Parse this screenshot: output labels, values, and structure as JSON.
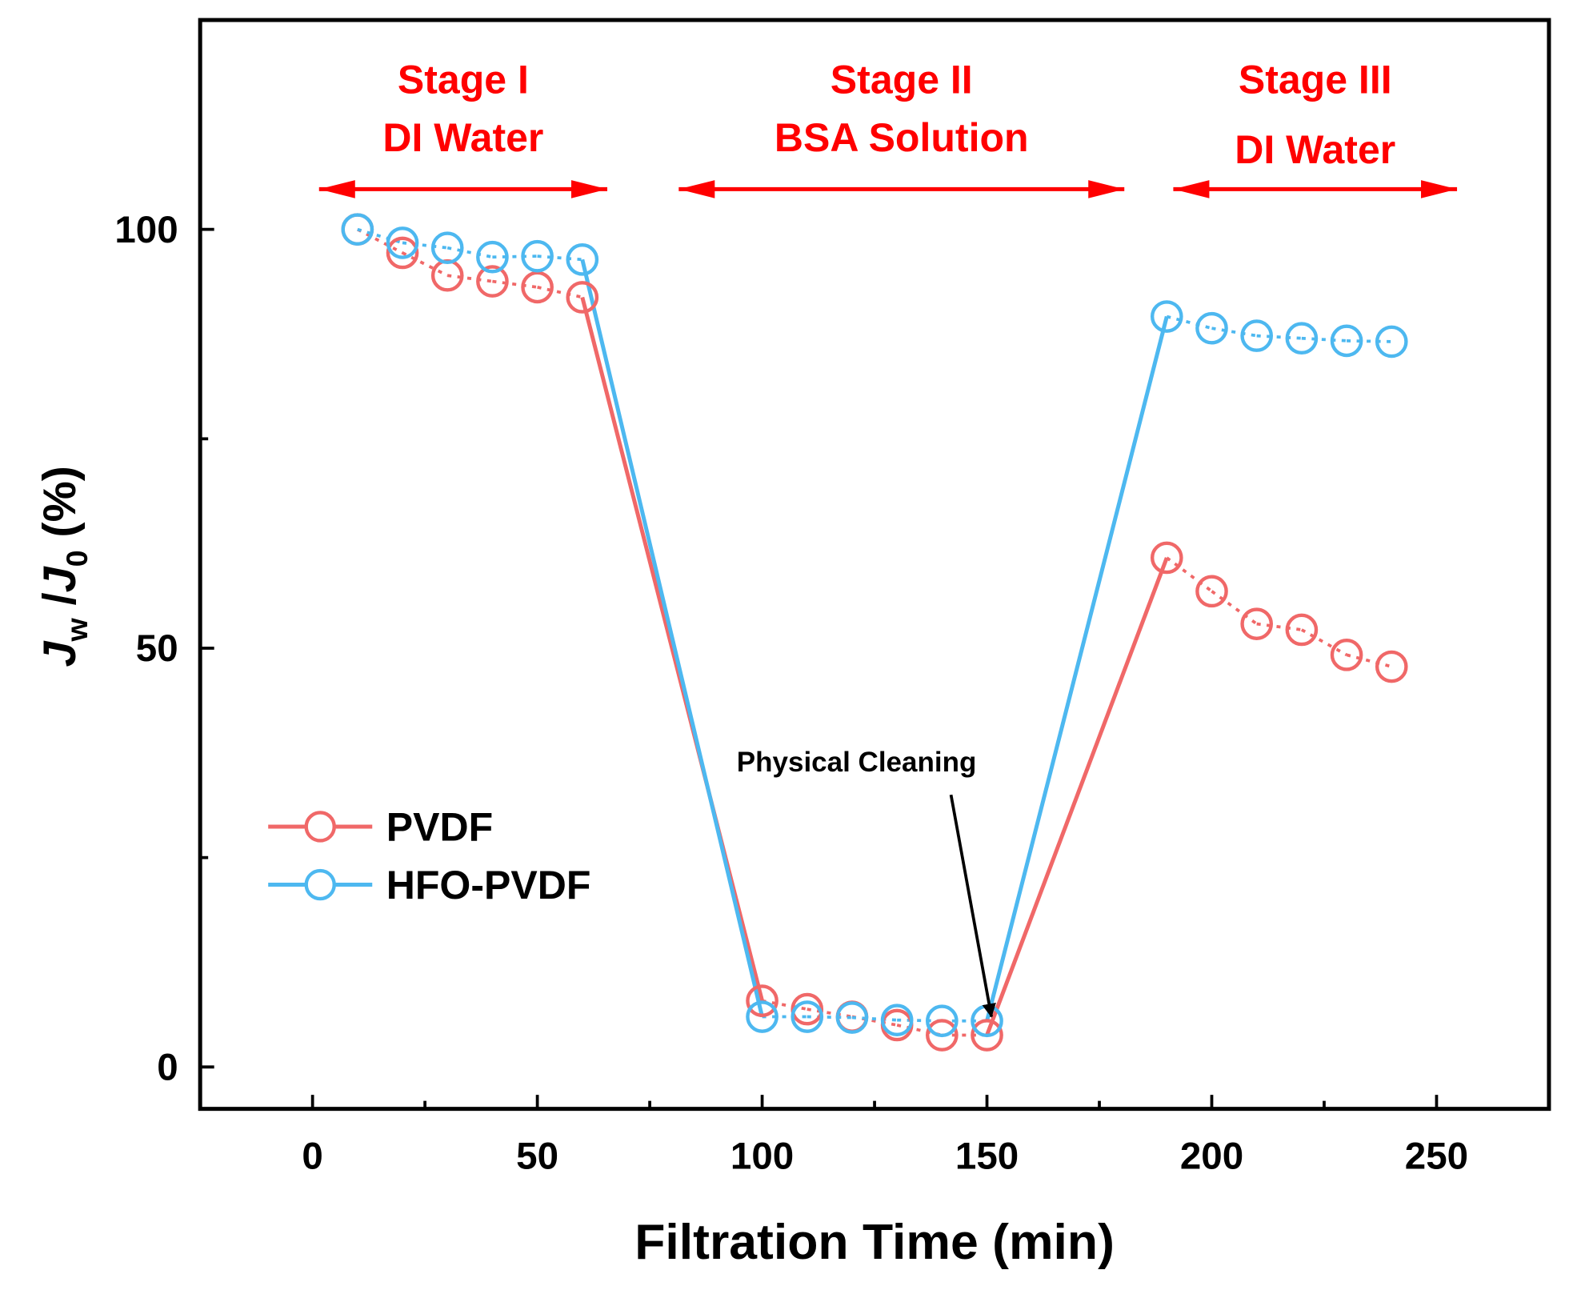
{
  "chart_data": {
    "type": "line",
    "title": "",
    "xlabel": "Filtration Time (min)",
    "ylabel_parts": {
      "J1": "J",
      "sub1": "w",
      "slash": " /",
      "J2": "J",
      "sub2": "0",
      "unit": " (%)"
    },
    "xlim": [
      -25,
      275
    ],
    "ylim": [
      -5,
      125
    ],
    "xticks": [
      0,
      50,
      100,
      150,
      200,
      250
    ],
    "xtick_labels": [
      "0",
      "50",
      "100",
      "150",
      "200",
      "250"
    ],
    "xminor": [
      25,
      75,
      125,
      175,
      225
    ],
    "yticks": [
      0,
      50,
      100
    ],
    "ytick_labels": [
      "0",
      "50",
      "100"
    ],
    "yminor": [
      25,
      75
    ],
    "grid": false,
    "legend_placement": "lower-left",
    "series": [
      {
        "name": "PVDF",
        "color": "#f06868",
        "x": [
          10,
          20,
          30,
          40,
          50,
          60,
          100,
          110,
          120,
          130,
          140,
          150,
          190,
          200,
          210,
          220,
          230,
          240
        ],
        "y": [
          100,
          97.2,
          94.5,
          93.8,
          93.1,
          91.9,
          7.9,
          6.9,
          6.0,
          5.0,
          3.8,
          3.8,
          60.8,
          56.8,
          52.9,
          52.2,
          49.2,
          47.8
        ]
      },
      {
        "name": "HFO-PVDF",
        "color": "#4db8f0",
        "x": [
          10,
          20,
          30,
          40,
          50,
          60,
          100,
          110,
          120,
          130,
          140,
          150,
          190,
          200,
          210,
          220,
          230,
          240
        ],
        "y": [
          100,
          98.4,
          97.8,
          96.7,
          96.8,
          96.4,
          6.0,
          6.0,
          5.9,
          5.6,
          5.5,
          5.5,
          89.6,
          88.2,
          87.3,
          87.0,
          86.7,
          86.6
        ]
      }
    ],
    "stages": [
      {
        "line1": "Stage I",
        "line2": "DI Water",
        "from": 1,
        "to": 66
      },
      {
        "line1": "Stage II",
        "line2": "BSA Solution",
        "from": 81,
        "to": 181
      },
      {
        "line1": "Stage III",
        "line2": "DI Water",
        "from": 191,
        "to": 255
      }
    ],
    "stage_color": "#ff0000",
    "annotation": {
      "text": "Physical Cleaning",
      "text_x": 121,
      "text_y": 36.5,
      "arrow_from": [
        142,
        32.5
      ],
      "arrow_to": [
        151,
        6
      ]
    }
  }
}
